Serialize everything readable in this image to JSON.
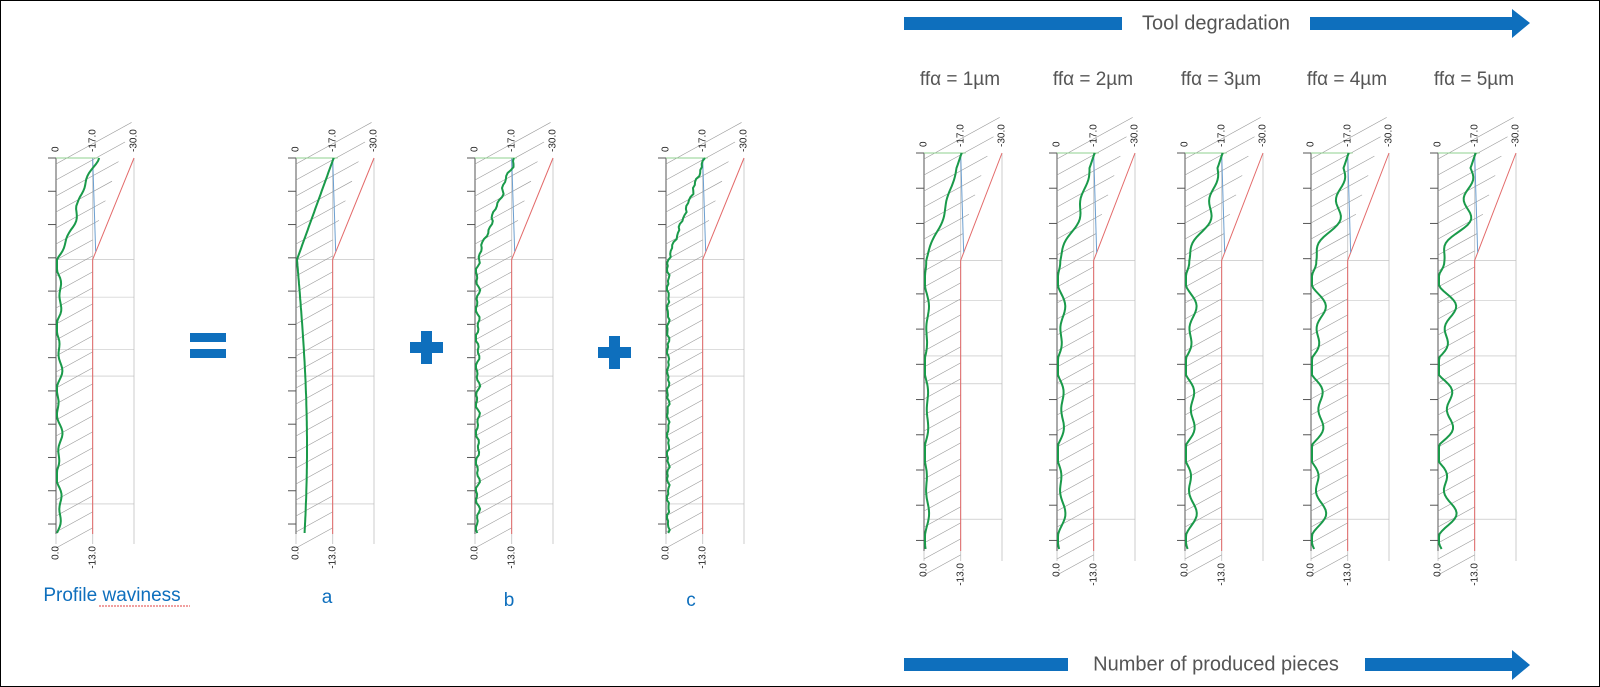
{
  "decomposition": {
    "labels": [
      "Profile waviness",
      "a",
      "b",
      "c"
    ]
  },
  "axis_labels": {
    "top": [
      "0",
      "-17.0",
      "-30.0"
    ],
    "bottom": [
      "0.0",
      "-13.0"
    ]
  },
  "degradation": {
    "top_arrow": "Tool degradation",
    "bottom_arrow": "Number of produced pieces",
    "labels": [
      "ffα = 1µm",
      "ffα = 2µm",
      "ffα = 3µm",
      "ffα = 4µm",
      "ffα = 5µm"
    ]
  }
}
